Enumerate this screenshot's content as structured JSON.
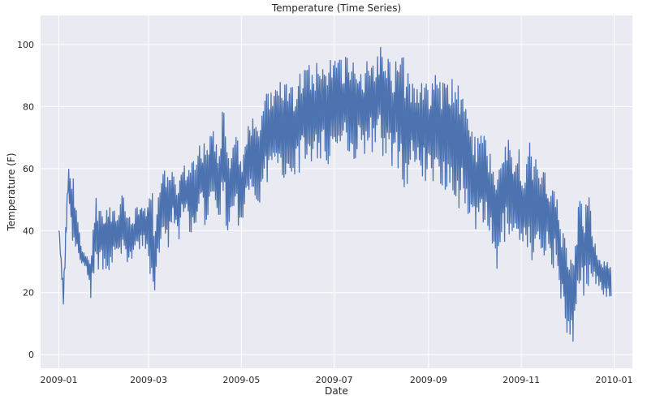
{
  "chart_data": {
    "type": "line",
    "title": "Temperature (Time Series)",
    "xlabel": "Date",
    "ylabel": "Temperature (F)",
    "x_ticks": [
      "2009-01",
      "2009-03",
      "2009-05",
      "2009-07",
      "2009-09",
      "2009-11",
      "2010-01"
    ],
    "y_ticks": [
      0,
      20,
      40,
      60,
      80,
      100
    ],
    "xlim": [
      "2008-12-20",
      "2010-01-13"
    ],
    "ylim": [
      -4.4,
      109.4
    ],
    "grid": true,
    "colors": {
      "background": "#eaeaf2",
      "grid": "#ffffff",
      "line": "#4c72b0"
    },
    "series": [
      {
        "x": [
          "2009-01-01",
          "2009-01-04",
          "2009-01-07",
          "2009-01-10",
          "2009-01-13",
          "2009-01-16",
          "2009-01-19",
          "2009-01-22",
          "2009-01-25",
          "2009-01-28",
          "2009-01-31",
          "2009-02-03",
          "2009-02-06",
          "2009-02-09",
          "2009-02-12",
          "2009-02-15",
          "2009-02-18",
          "2009-02-21",
          "2009-02-24",
          "2009-02-27",
          "2009-03-02",
          "2009-03-05",
          "2009-03-08",
          "2009-03-11",
          "2009-03-14",
          "2009-03-17",
          "2009-03-20",
          "2009-03-23",
          "2009-03-26",
          "2009-03-29",
          "2009-04-01",
          "2009-04-04",
          "2009-04-07",
          "2009-04-10",
          "2009-04-13",
          "2009-04-16",
          "2009-04-19",
          "2009-04-22",
          "2009-04-25",
          "2009-04-28",
          "2009-05-01",
          "2009-05-04",
          "2009-05-07",
          "2009-05-10",
          "2009-05-13",
          "2009-05-16",
          "2009-05-19",
          "2009-05-22",
          "2009-05-25",
          "2009-05-28",
          "2009-05-31",
          "2009-06-03",
          "2009-06-06",
          "2009-06-09",
          "2009-06-12",
          "2009-06-15",
          "2009-06-18",
          "2009-06-21",
          "2009-06-24",
          "2009-06-27",
          "2009-06-30",
          "2009-07-03",
          "2009-07-06",
          "2009-07-09",
          "2009-07-12",
          "2009-07-15",
          "2009-07-18",
          "2009-07-21",
          "2009-07-24",
          "2009-07-27",
          "2009-07-30",
          "2009-08-02",
          "2009-08-05",
          "2009-08-08",
          "2009-08-11",
          "2009-08-14",
          "2009-08-17",
          "2009-08-20",
          "2009-08-23",
          "2009-08-26",
          "2009-08-29",
          "2009-09-01",
          "2009-09-04",
          "2009-09-07",
          "2009-09-10",
          "2009-09-13",
          "2009-09-16",
          "2009-09-19",
          "2009-09-22",
          "2009-09-25",
          "2009-09-28",
          "2009-10-01",
          "2009-10-04",
          "2009-10-07",
          "2009-10-10",
          "2009-10-13",
          "2009-10-16",
          "2009-10-19",
          "2009-10-22",
          "2009-10-25",
          "2009-10-28",
          "2009-10-31",
          "2009-11-03",
          "2009-11-06",
          "2009-11-09",
          "2009-11-12",
          "2009-11-15",
          "2009-11-18",
          "2009-11-21",
          "2009-11-24",
          "2009-11-27",
          "2009-11-30",
          "2009-12-03",
          "2009-12-06",
          "2009-12-09",
          "2009-12-12",
          "2009-12-15",
          "2009-12-18",
          "2009-12-21",
          "2009-12-24",
          "2009-12-27",
          "2009-12-30"
        ],
        "low": [
          40,
          14,
          48,
          33,
          30,
          29,
          27,
          18,
          25,
          28,
          26,
          27,
          30,
          28,
          33,
          27,
          30,
          31,
          35,
          32,
          24,
          17,
          30,
          38,
          33,
          42,
          36,
          40,
          44,
          37,
          36,
          46,
          40,
          47,
          44,
          42,
          48,
          38,
          40,
          44,
          36,
          48,
          52,
          50,
          48,
          54,
          55,
          58,
          54,
          56,
          58,
          54,
          60,
          58,
          62,
          60,
          62,
          62,
          64,
          60,
          63,
          66,
          62,
          66,
          64,
          62,
          66,
          64,
          68,
          62,
          66,
          64,
          62,
          60,
          60,
          58,
          52,
          60,
          60,
          57,
          56,
          54,
          55,
          54,
          52,
          54,
          52,
          46,
          48,
          45,
          44,
          42,
          36,
          40,
          38,
          33,
          26,
          34,
          36,
          32,
          34,
          26,
          32,
          30,
          28,
          30,
          28,
          34,
          26,
          32,
          18,
          8,
          1,
          3,
          22,
          18,
          20,
          24,
          22,
          20,
          18,
          18
        ],
        "high": [
          42,
          22,
          62,
          59,
          48,
          34,
          32,
          33,
          52,
          48,
          49,
          50,
          46,
          48,
          52,
          46,
          45,
          48,
          52,
          48,
          60,
          44,
          55,
          60,
          57,
          60,
          54,
          66,
          58,
          66,
          60,
          70,
          68,
          72,
          75,
          68,
          83,
          64,
          68,
          72,
          64,
          72,
          76,
          78,
          76,
          82,
          86,
          86,
          90,
          86,
          92,
          86,
          88,
          92,
          94,
          94,
          92,
          96,
          92,
          98,
          98,
          94,
          98,
          96,
          98,
          94,
          96,
          92,
          98,
          96,
          100,
          104,
          98,
          94,
          96,
          98,
          94,
          90,
          86,
          88,
          90,
          87,
          92,
          90,
          88,
          94,
          90,
          86,
          90,
          80,
          78,
          72,
          70,
          74,
          68,
          65,
          62,
          66,
          70,
          72,
          64,
          68,
          62,
          70,
          66,
          62,
          60,
          58,
          56,
          52,
          40,
          40,
          36,
          36,
          52,
          46,
          53,
          40,
          34,
          31,
          32,
          30
        ]
      }
    ]
  }
}
